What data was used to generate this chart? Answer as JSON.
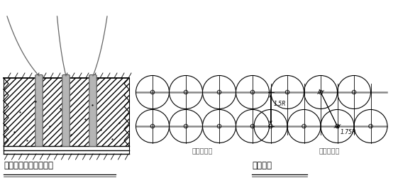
{
  "bg_color": "#ffffff",
  "line_color": "#000000",
  "gray_color": "#888888",
  "title_left": "底板混凝土振捣示意图",
  "title_right": "插点排列",
  "label_row": "行列式排列",
  "label_stagger": "交错式排列",
  "label_1_5R": "1.5R",
  "label_1_75R": "1.75R",
  "font_size_title": 8.5,
  "font_size_label": 7.0,
  "fig_w": 5.92,
  "fig_h": 2.68
}
